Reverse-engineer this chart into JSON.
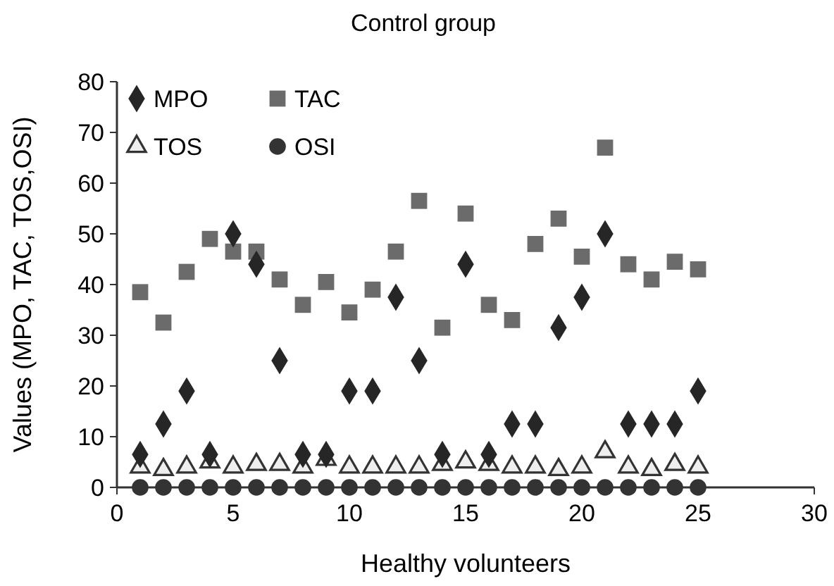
{
  "chart_data": {
    "type": "scatter",
    "title": "Control group",
    "xlabel": "Healthy volunteers",
    "ylabel": "Values (MPO, TAC, TOS,OSI)",
    "x": [
      1,
      2,
      3,
      4,
      5,
      6,
      7,
      8,
      9,
      10,
      11,
      12,
      13,
      14,
      15,
      16,
      17,
      18,
      19,
      20,
      21,
      22,
      23,
      24,
      25
    ],
    "xlim": [
      0,
      30
    ],
    "xticks": [
      0,
      5,
      10,
      15,
      20,
      25,
      30
    ],
    "ylim": [
      0,
      80
    ],
    "yticks": [
      0,
      10,
      20,
      30,
      40,
      50,
      60,
      70,
      80
    ],
    "grid": false,
    "legend": "top left",
    "series": [
      {
        "name": "MPO",
        "color": "#262626",
        "marker": "diamond",
        "values": [
          6.5,
          12.5,
          19,
          6.5,
          50,
          44,
          25,
          6.5,
          6.5,
          19,
          19,
          37.5,
          25,
          6.5,
          44,
          6.5,
          12.5,
          12.5,
          31.5,
          37.5,
          50,
          12.5,
          12.5,
          12.5,
          19
        ]
      },
      {
        "name": "TAC",
        "color": "#6b6b6b",
        "marker": "square",
        "values": [
          38.5,
          32.5,
          42.5,
          49,
          46.5,
          46.5,
          41,
          36,
          40.5,
          34.5,
          39,
          46.5,
          56.5,
          31.5,
          54,
          36,
          33,
          48,
          53,
          45.5,
          67,
          44,
          41,
          44.5,
          43
        ]
      },
      {
        "name": "TOS",
        "color": "#eeeeee",
        "marker": "triangle",
        "values": [
          4,
          3.5,
          4,
          5,
          4,
          4.5,
          4.5,
          4,
          5.5,
          4,
          4,
          4,
          4,
          4.5,
          5,
          4.5,
          4,
          4,
          3.5,
          4,
          7,
          4,
          3.5,
          4.5,
          4
        ]
      },
      {
        "name": "OSI",
        "color": "#333333",
        "marker": "circle",
        "values": [
          0,
          0,
          0,
          0,
          0,
          0,
          0,
          0,
          0,
          0,
          0,
          0,
          0,
          0,
          0,
          0,
          0,
          0,
          0,
          0,
          0,
          0,
          0,
          0,
          0
        ]
      }
    ]
  }
}
